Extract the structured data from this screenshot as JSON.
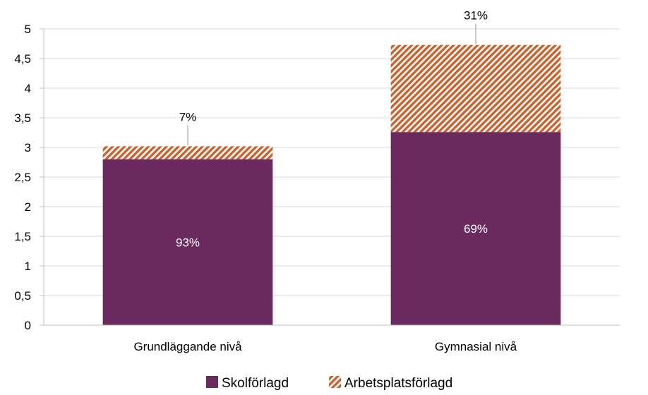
{
  "chart_data": {
    "type": "bar",
    "stacked": true,
    "categories": [
      "Grundläggande nivå",
      "Gymnasial nivå"
    ],
    "series": [
      {
        "name": "Skolförlagd",
        "values": [
          2.8,
          3.26
        ],
        "labels": [
          "93%",
          "69%"
        ],
        "color": "#6b2a5e"
      },
      {
        "name": "Arbetsplatsförlagd",
        "values": [
          0.22,
          1.47
        ],
        "labels": [
          "7%",
          "31%"
        ],
        "color": "#d0602a",
        "pattern": "diagonal-hatch"
      }
    ],
    "ylim": [
      0,
      5
    ],
    "yticks": [
      "0",
      "0,5",
      "1",
      "1,5",
      "2",
      "2,5",
      "3",
      "3,5",
      "4",
      "4,5",
      "5"
    ],
    "ytick_values": [
      0,
      0.5,
      1,
      1.5,
      2,
      2.5,
      3,
      3.5,
      4,
      4.5,
      5
    ],
    "grid": true,
    "legend_position": "bottom"
  }
}
